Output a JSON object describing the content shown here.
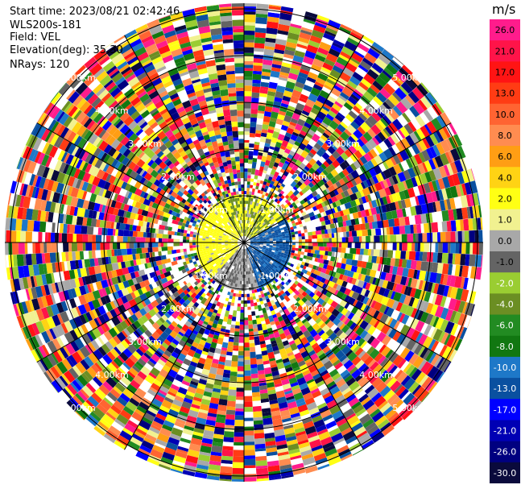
{
  "header": {
    "start_time": "Start time: 2023/08/21 02:42:46",
    "instrument": "WLS200s-181",
    "field": "Field: VEL",
    "elevation": "Elevation(deg): 35.30",
    "nrays": "NRays: 120"
  },
  "colorbar": {
    "unit": "m/s",
    "labels": [
      "26.0",
      "21.0",
      "17.0",
      "13.0",
      "10.0",
      "8.0",
      "6.0",
      "4.0",
      "2.0",
      "1.0",
      "0.0",
      "-1.0",
      "-2.0",
      "-4.0",
      "-6.0",
      "-8.0",
      "-10.0",
      "-13.0",
      "-17.0",
      "-21.0",
      "-26.0",
      "-30.0"
    ],
    "colors": [
      "#ff1c8c",
      "#ff1449",
      "#ff1414",
      "#ff3c14",
      "#ff6432",
      "#ff8c50",
      "#ff9e14",
      "#ffd314",
      "#ffff14",
      "#f1f190",
      "#a8a8a8",
      "#646464",
      "#9acd32",
      "#6b8e23",
      "#228b22",
      "#117711",
      "#1e78c8",
      "#0a50a0",
      "#0000ff",
      "#0000b4",
      "#000080",
      "#0a0a3c"
    ]
  },
  "chart_data": {
    "type": "heatmap",
    "field": "VEL",
    "unit": "m/s",
    "nrays": 120,
    "elevation_deg": 35.3,
    "range_rings_km": [
      1.0,
      2.0,
      3.0,
      4.0,
      5.0
    ],
    "ring_labels": [
      "1.00km",
      "2.00km",
      "3.00km",
      "4.00km",
      "5.00km"
    ],
    "color_levels": [
      -30.0,
      -26.0,
      -21.0,
      -17.0,
      -13.0,
      -10.0,
      -8.0,
      -6.0,
      -4.0,
      -2.0,
      -1.0,
      0.0,
      1.0,
      2.0,
      4.0,
      6.0,
      8.0,
      10.0,
      13.0,
      17.0,
      21.0,
      26.0
    ],
    "inner_pattern": {
      "north": "yellow / olive-green (+2 to -4 m/s)",
      "west": "yellow (+2 to +4 m/s)",
      "east": "blue (-8 to -13 m/s)",
      "south": "grey / white (~0 m/s)"
    },
    "outer_pattern": "noise: mixed colors across full velocity range"
  }
}
